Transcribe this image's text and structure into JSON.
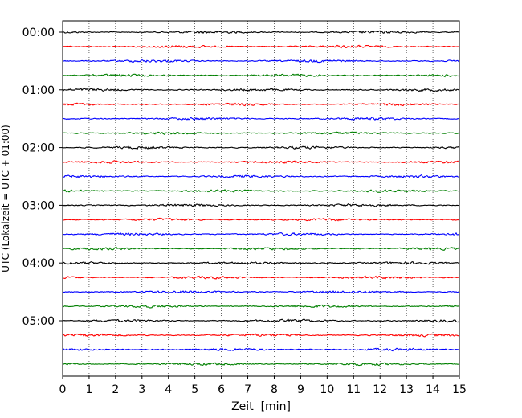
{
  "chart_data": {
    "type": "line",
    "subtype": "seismogram-helicorder",
    "xlabel": "Zeit  [min]",
    "ylabel": "UTC (Lokalzeit = UTC + 01:00)",
    "xlim": [
      0,
      15
    ],
    "x_ticks": [
      0,
      1,
      2,
      3,
      4,
      5,
      6,
      7,
      8,
      9,
      10,
      11,
      12,
      13,
      14,
      15
    ],
    "x_tick_labels": [
      "0",
      "1",
      "2",
      "3",
      "4",
      "5",
      "6",
      "7",
      "8",
      "9",
      "10",
      "11",
      "12",
      "13",
      "14",
      "15"
    ],
    "y_tick_labels": [
      "00:00",
      "01:00",
      "02:00",
      "03:00",
      "04:00",
      "05:00"
    ],
    "line_interval_minutes": 15,
    "trace_count": 24,
    "trace_colors": [
      "#000000",
      "#ff0000",
      "#0000ff",
      "#008000"
    ],
    "grid": "vertical dotted at each minute"
  }
}
